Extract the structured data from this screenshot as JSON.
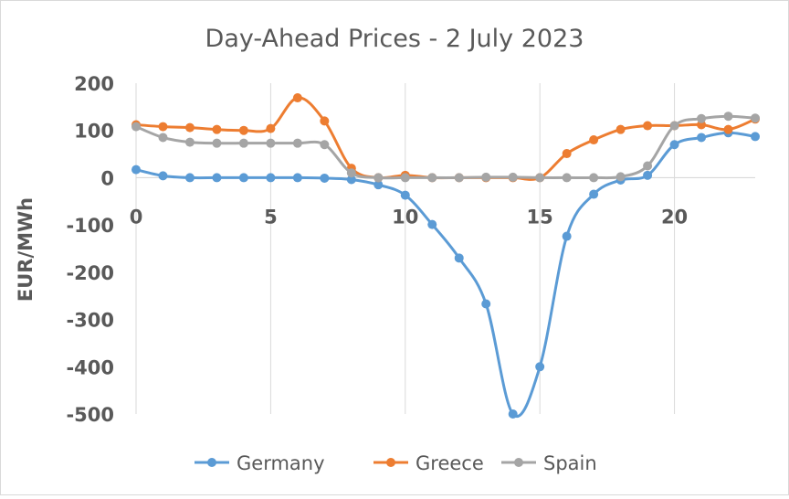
{
  "chart_data": {
    "type": "line",
    "title": "Day-Ahead Prices - 2 July 2023",
    "xlabel": "",
    "ylabel": "EUR/MWh",
    "x": [
      0,
      1,
      2,
      3,
      4,
      5,
      6,
      7,
      8,
      9,
      10,
      11,
      12,
      13,
      14,
      15,
      16,
      17,
      18,
      19,
      20,
      21,
      22,
      23
    ],
    "xlim": [
      0,
      23
    ],
    "ylim": [
      -500,
      200
    ],
    "xticks": [
      0,
      5,
      10,
      15,
      20
    ],
    "yticks": [
      200,
      100,
      0,
      -100,
      -200,
      -300,
      -400,
      -500
    ],
    "grid": "vertical",
    "legend": "bottom",
    "series": [
      {
        "name": "Germany",
        "color": "#5b9bd5",
        "values": [
          17,
          4,
          0,
          0,
          0,
          0,
          0,
          -1,
          -4,
          -15,
          -37,
          -99,
          -170,
          -267,
          -500,
          -400,
          -124,
          -35,
          -5,
          5,
          70,
          85,
          95,
          87
        ]
      },
      {
        "name": "Greece",
        "color": "#ed7d31",
        "values": [
          112,
          108,
          106,
          102,
          100,
          104,
          169,
          120,
          20,
          0,
          5,
          0,
          0,
          0,
          0,
          0,
          51,
          80,
          102,
          110,
          110,
          112,
          102,
          124
        ]
      },
      {
        "name": "Spain",
        "color": "#a5a5a5",
        "values": [
          108,
          85,
          75,
          73,
          73,
          73,
          73,
          70,
          10,
          0,
          0,
          0,
          0,
          1,
          1,
          0,
          0,
          0,
          2,
          25,
          110,
          125,
          130,
          126
        ]
      }
    ]
  }
}
